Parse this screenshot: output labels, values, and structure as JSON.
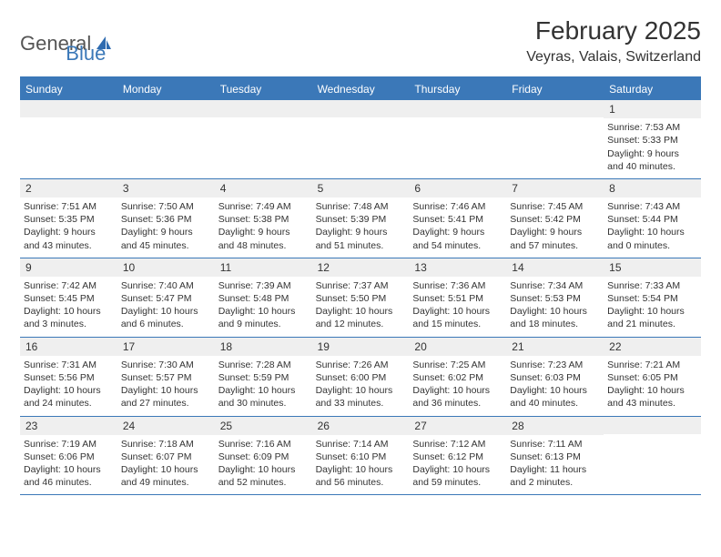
{
  "logo": {
    "text1": "General",
    "text2": "Blue"
  },
  "title": "February 2025",
  "location": "Veyras, Valais, Switzerland",
  "colors": {
    "header_bg": "#3b78b8",
    "header_text": "#ffffff",
    "daynum_bg": "#efefef",
    "body_text": "#333333",
    "logo_gray": "#555555",
    "logo_blue": "#3b78b8",
    "page_bg": "#ffffff"
  },
  "day_names": [
    "Sunday",
    "Monday",
    "Tuesday",
    "Wednesday",
    "Thursday",
    "Friday",
    "Saturday"
  ],
  "weeks": [
    [
      null,
      null,
      null,
      null,
      null,
      null,
      {
        "n": "1",
        "sunrise": "Sunrise: 7:53 AM",
        "sunset": "Sunset: 5:33 PM",
        "daylight1": "Daylight: 9 hours",
        "daylight2": "and 40 minutes."
      }
    ],
    [
      {
        "n": "2",
        "sunrise": "Sunrise: 7:51 AM",
        "sunset": "Sunset: 5:35 PM",
        "daylight1": "Daylight: 9 hours",
        "daylight2": "and 43 minutes."
      },
      {
        "n": "3",
        "sunrise": "Sunrise: 7:50 AM",
        "sunset": "Sunset: 5:36 PM",
        "daylight1": "Daylight: 9 hours",
        "daylight2": "and 45 minutes."
      },
      {
        "n": "4",
        "sunrise": "Sunrise: 7:49 AM",
        "sunset": "Sunset: 5:38 PM",
        "daylight1": "Daylight: 9 hours",
        "daylight2": "and 48 minutes."
      },
      {
        "n": "5",
        "sunrise": "Sunrise: 7:48 AM",
        "sunset": "Sunset: 5:39 PM",
        "daylight1": "Daylight: 9 hours",
        "daylight2": "and 51 minutes."
      },
      {
        "n": "6",
        "sunrise": "Sunrise: 7:46 AM",
        "sunset": "Sunset: 5:41 PM",
        "daylight1": "Daylight: 9 hours",
        "daylight2": "and 54 minutes."
      },
      {
        "n": "7",
        "sunrise": "Sunrise: 7:45 AM",
        "sunset": "Sunset: 5:42 PM",
        "daylight1": "Daylight: 9 hours",
        "daylight2": "and 57 minutes."
      },
      {
        "n": "8",
        "sunrise": "Sunrise: 7:43 AM",
        "sunset": "Sunset: 5:44 PM",
        "daylight1": "Daylight: 10 hours",
        "daylight2": "and 0 minutes."
      }
    ],
    [
      {
        "n": "9",
        "sunrise": "Sunrise: 7:42 AM",
        "sunset": "Sunset: 5:45 PM",
        "daylight1": "Daylight: 10 hours",
        "daylight2": "and 3 minutes."
      },
      {
        "n": "10",
        "sunrise": "Sunrise: 7:40 AM",
        "sunset": "Sunset: 5:47 PM",
        "daylight1": "Daylight: 10 hours",
        "daylight2": "and 6 minutes."
      },
      {
        "n": "11",
        "sunrise": "Sunrise: 7:39 AM",
        "sunset": "Sunset: 5:48 PM",
        "daylight1": "Daylight: 10 hours",
        "daylight2": "and 9 minutes."
      },
      {
        "n": "12",
        "sunrise": "Sunrise: 7:37 AM",
        "sunset": "Sunset: 5:50 PM",
        "daylight1": "Daylight: 10 hours",
        "daylight2": "and 12 minutes."
      },
      {
        "n": "13",
        "sunrise": "Sunrise: 7:36 AM",
        "sunset": "Sunset: 5:51 PM",
        "daylight1": "Daylight: 10 hours",
        "daylight2": "and 15 minutes."
      },
      {
        "n": "14",
        "sunrise": "Sunrise: 7:34 AM",
        "sunset": "Sunset: 5:53 PM",
        "daylight1": "Daylight: 10 hours",
        "daylight2": "and 18 minutes."
      },
      {
        "n": "15",
        "sunrise": "Sunrise: 7:33 AM",
        "sunset": "Sunset: 5:54 PM",
        "daylight1": "Daylight: 10 hours",
        "daylight2": "and 21 minutes."
      }
    ],
    [
      {
        "n": "16",
        "sunrise": "Sunrise: 7:31 AM",
        "sunset": "Sunset: 5:56 PM",
        "daylight1": "Daylight: 10 hours",
        "daylight2": "and 24 minutes."
      },
      {
        "n": "17",
        "sunrise": "Sunrise: 7:30 AM",
        "sunset": "Sunset: 5:57 PM",
        "daylight1": "Daylight: 10 hours",
        "daylight2": "and 27 minutes."
      },
      {
        "n": "18",
        "sunrise": "Sunrise: 7:28 AM",
        "sunset": "Sunset: 5:59 PM",
        "daylight1": "Daylight: 10 hours",
        "daylight2": "and 30 minutes."
      },
      {
        "n": "19",
        "sunrise": "Sunrise: 7:26 AM",
        "sunset": "Sunset: 6:00 PM",
        "daylight1": "Daylight: 10 hours",
        "daylight2": "and 33 minutes."
      },
      {
        "n": "20",
        "sunrise": "Sunrise: 7:25 AM",
        "sunset": "Sunset: 6:02 PM",
        "daylight1": "Daylight: 10 hours",
        "daylight2": "and 36 minutes."
      },
      {
        "n": "21",
        "sunrise": "Sunrise: 7:23 AM",
        "sunset": "Sunset: 6:03 PM",
        "daylight1": "Daylight: 10 hours",
        "daylight2": "and 40 minutes."
      },
      {
        "n": "22",
        "sunrise": "Sunrise: 7:21 AM",
        "sunset": "Sunset: 6:05 PM",
        "daylight1": "Daylight: 10 hours",
        "daylight2": "and 43 minutes."
      }
    ],
    [
      {
        "n": "23",
        "sunrise": "Sunrise: 7:19 AM",
        "sunset": "Sunset: 6:06 PM",
        "daylight1": "Daylight: 10 hours",
        "daylight2": "and 46 minutes."
      },
      {
        "n": "24",
        "sunrise": "Sunrise: 7:18 AM",
        "sunset": "Sunset: 6:07 PM",
        "daylight1": "Daylight: 10 hours",
        "daylight2": "and 49 minutes."
      },
      {
        "n": "25",
        "sunrise": "Sunrise: 7:16 AM",
        "sunset": "Sunset: 6:09 PM",
        "daylight1": "Daylight: 10 hours",
        "daylight2": "and 52 minutes."
      },
      {
        "n": "26",
        "sunrise": "Sunrise: 7:14 AM",
        "sunset": "Sunset: 6:10 PM",
        "daylight1": "Daylight: 10 hours",
        "daylight2": "and 56 minutes."
      },
      {
        "n": "27",
        "sunrise": "Sunrise: 7:12 AM",
        "sunset": "Sunset: 6:12 PM",
        "daylight1": "Daylight: 10 hours",
        "daylight2": "and 59 minutes."
      },
      {
        "n": "28",
        "sunrise": "Sunrise: 7:11 AM",
        "sunset": "Sunset: 6:13 PM",
        "daylight1": "Daylight: 11 hours",
        "daylight2": "and 2 minutes."
      },
      null
    ]
  ]
}
